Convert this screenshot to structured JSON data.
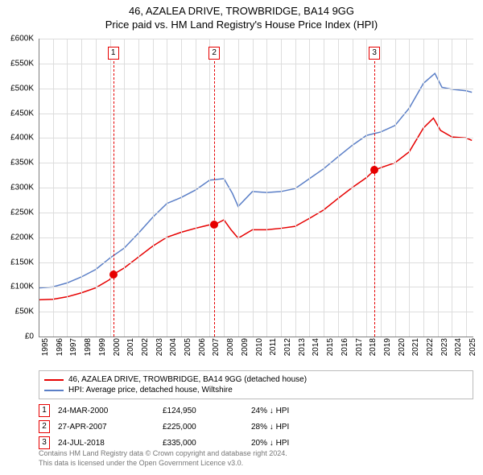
{
  "title": {
    "line1": "46, AZALEA DRIVE, TROWBRIDGE, BA14 9GG",
    "line2": "Price paid vs. HM Land Registry's House Price Index (HPI)"
  },
  "chart": {
    "type": "line",
    "xlim": [
      1995,
      2025.5
    ],
    "ylim": [
      0,
      600000
    ],
    "ytick_step": 50000,
    "y_ticks": [
      0,
      50000,
      100000,
      150000,
      200000,
      250000,
      300000,
      350000,
      400000,
      450000,
      500000,
      550000,
      600000
    ],
    "y_tick_labels": [
      "£0",
      "£50K",
      "£100K",
      "£150K",
      "£200K",
      "£250K",
      "£300K",
      "£350K",
      "£400K",
      "£450K",
      "£500K",
      "£550K",
      "£600K"
    ],
    "x_ticks": [
      1995,
      1996,
      1997,
      1998,
      1999,
      2000,
      2001,
      2002,
      2003,
      2004,
      2005,
      2006,
      2007,
      2008,
      2009,
      2010,
      2011,
      2012,
      2013,
      2014,
      2015,
      2016,
      2017,
      2018,
      2019,
      2020,
      2021,
      2022,
      2023,
      2024,
      2025
    ],
    "grid_color": "#dddddd",
    "axis_color": "#808080",
    "background_color": "#ffffff",
    "tick_fontsize": 10,
    "series": [
      {
        "name": "price_paid",
        "label": "46, AZALEA DRIVE, TROWBRIDGE, BA14 9GG (detached house)",
        "color": "#e60000",
        "line_width": 1.5,
        "points": [
          [
            1995.0,
            74000
          ],
          [
            1996.0,
            75000
          ],
          [
            1997.0,
            80000
          ],
          [
            1998.0,
            88000
          ],
          [
            1999.0,
            98000
          ],
          [
            2000.0,
            115000
          ],
          [
            2000.23,
            124950
          ],
          [
            2001.0,
            138000
          ],
          [
            2002.0,
            160000
          ],
          [
            2003.0,
            182000
          ],
          [
            2004.0,
            200000
          ],
          [
            2005.0,
            210000
          ],
          [
            2006.0,
            218000
          ],
          [
            2007.0,
            225000
          ],
          [
            2007.32,
            225000
          ],
          [
            2008.0,
            235000
          ],
          [
            2008.5,
            215000
          ],
          [
            2009.0,
            198000
          ],
          [
            2010.0,
            215000
          ],
          [
            2011.0,
            215000
          ],
          [
            2012.0,
            218000
          ],
          [
            2013.0,
            222000
          ],
          [
            2014.0,
            238000
          ],
          [
            2015.0,
            255000
          ],
          [
            2016.0,
            278000
          ],
          [
            2017.0,
            300000
          ],
          [
            2018.0,
            320000
          ],
          [
            2018.56,
            335000
          ],
          [
            2019.0,
            340000
          ],
          [
            2020.0,
            350000
          ],
          [
            2021.0,
            372000
          ],
          [
            2022.0,
            420000
          ],
          [
            2022.7,
            440000
          ],
          [
            2023.2,
            415000
          ],
          [
            2024.0,
            402000
          ],
          [
            2025.0,
            400000
          ],
          [
            2025.4,
            395000
          ]
        ]
      },
      {
        "name": "hpi",
        "label": "HPI: Average price, detached house, Wiltshire",
        "color": "#5b7fc7",
        "line_width": 1.5,
        "points": [
          [
            1995.0,
            98000
          ],
          [
            1996.0,
            100000
          ],
          [
            1997.0,
            108000
          ],
          [
            1998.0,
            120000
          ],
          [
            1999.0,
            135000
          ],
          [
            2000.0,
            158000
          ],
          [
            2001.0,
            178000
          ],
          [
            2002.0,
            208000
          ],
          [
            2003.0,
            240000
          ],
          [
            2004.0,
            268000
          ],
          [
            2005.0,
            280000
          ],
          [
            2006.0,
            295000
          ],
          [
            2007.0,
            315000
          ],
          [
            2008.0,
            318000
          ],
          [
            2008.6,
            288000
          ],
          [
            2009.0,
            262000
          ],
          [
            2010.0,
            292000
          ],
          [
            2011.0,
            290000
          ],
          [
            2012.0,
            292000
          ],
          [
            2013.0,
            298000
          ],
          [
            2014.0,
            318000
          ],
          [
            2015.0,
            338000
          ],
          [
            2016.0,
            362000
          ],
          [
            2017.0,
            385000
          ],
          [
            2018.0,
            405000
          ],
          [
            2019.0,
            412000
          ],
          [
            2020.0,
            425000
          ],
          [
            2021.0,
            460000
          ],
          [
            2022.0,
            510000
          ],
          [
            2022.8,
            530000
          ],
          [
            2023.3,
            502000
          ],
          [
            2024.0,
            498000
          ],
          [
            2025.0,
            495000
          ],
          [
            2025.4,
            492000
          ]
        ]
      }
    ],
    "sale_markers": [
      {
        "num": "1",
        "x": 2000.23,
        "y": 124950,
        "color": "#e60000"
      },
      {
        "num": "2",
        "x": 2007.32,
        "y": 225000,
        "color": "#e60000"
      },
      {
        "num": "3",
        "x": 2018.56,
        "y": 335000,
        "color": "#e60000"
      }
    ],
    "event_vline_color": "#e60000",
    "event_vline_dash": "3,3",
    "marker_box_top_offset": 10
  },
  "legend": {
    "items": [
      {
        "color": "#e60000",
        "label": "46, AZALEA DRIVE, TROWBRIDGE, BA14 9GG (detached house)"
      },
      {
        "color": "#5b7fc7",
        "label": "HPI: Average price, detached house, Wiltshire"
      }
    ]
  },
  "events": [
    {
      "num": "1",
      "date": "24-MAR-2000",
      "price": "£124,950",
      "delta": "24% ↓ HPI",
      "box_color": "#e60000"
    },
    {
      "num": "2",
      "date": "27-APR-2007",
      "price": "£225,000",
      "delta": "28% ↓ HPI",
      "box_color": "#e60000"
    },
    {
      "num": "3",
      "date": "24-JUL-2018",
      "price": "£335,000",
      "delta": "20% ↓ HPI",
      "box_color": "#e60000"
    }
  ],
  "footer": {
    "line1": "Contains HM Land Registry data © Crown copyright and database right 2024.",
    "line2": "This data is licensed under the Open Government Licence v3.0."
  }
}
